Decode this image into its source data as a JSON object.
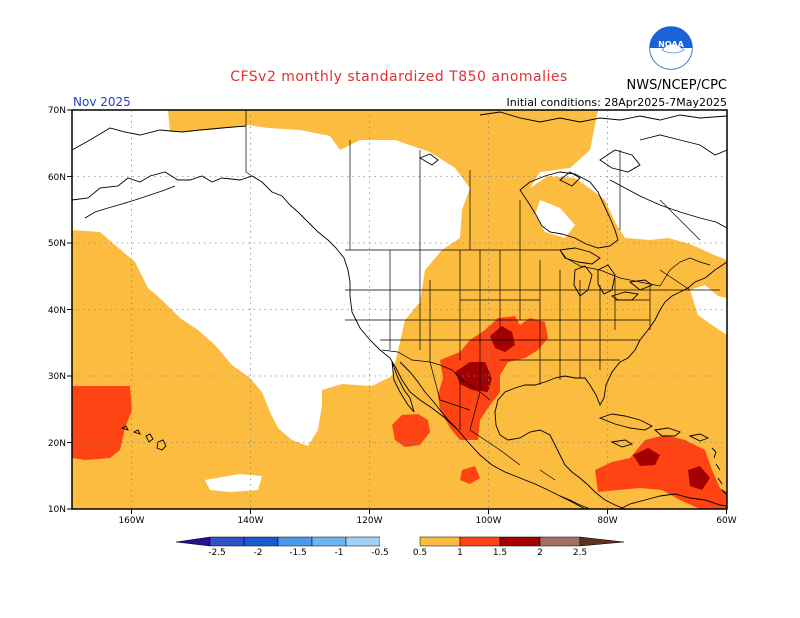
{
  "title": "CFSv2 monthly standardized T850 anomalies",
  "month_label": "Nov 2025",
  "initial_conditions": "Initial conditions: 28Apr2025-7May2025",
  "agency": "NWS/NCEP/CPC",
  "logo_text": "NOAA",
  "colors": {
    "title": "#e03030",
    "month": "#2040d0",
    "pos_05_1": "#fbbc3f",
    "pos_1_15": "#ff4312",
    "pos_15_2": "#a30000",
    "pos_2_25": "#a07060",
    "pos_gt25": "#603020",
    "neg_05_1": "#9fd0f8",
    "neg_1_15": "#4a98ea",
    "neg_15_2": "#1a5ad0",
    "neg_2_25": "#3050c8",
    "neg_lt25": "#2a1090"
  },
  "lat_labels": [
    "70N",
    "60N",
    "50N",
    "40N",
    "30N",
    "20N",
    "10N"
  ],
  "lon_labels": [
    "160W",
    "140W",
    "120W",
    "100W",
    "80W",
    "60W"
  ],
  "legend": {
    "ticks": [
      "-2.5",
      "-2",
      "-1.5",
      "-1",
      "-0.5",
      "0.5",
      "1",
      "1.5",
      "2",
      "2.5"
    ]
  }
}
